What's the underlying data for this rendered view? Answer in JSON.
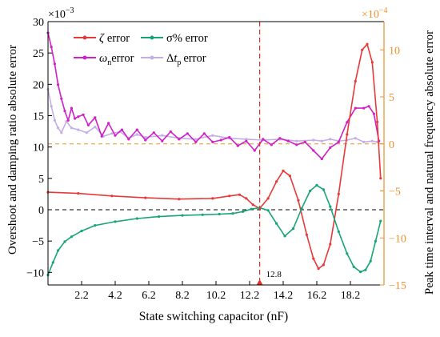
{
  "chart_data": {
    "type": "line",
    "xlabel": "State switching capacitor (nF)",
    "ylabel_left": "Overshoot and damping ratio absolute error",
    "ylabel_right": "Peak time interval and natural frequency absolute error",
    "left_multiplier": "×10",
    "left_exponent": "−3",
    "right_multiplier": "×10",
    "right_exponent": "−4",
    "xlim": [
      0.2,
      20.2
    ],
    "xticks": [
      2.2,
      4.2,
      6.2,
      8.2,
      10.2,
      12.2,
      14.2,
      16.2,
      18.2
    ],
    "xtick_labels": [
      "2.2",
      "4.2",
      "6.2",
      "8.2",
      "10.2",
      "12.2",
      "14.2",
      "16.2",
      "18.2"
    ],
    "ylim_left": [
      -12,
      30
    ],
    "yticks_left": [
      -10,
      -5,
      0,
      5,
      10,
      15,
      20,
      25,
      30
    ],
    "ylim_right": [
      -15,
      13
    ],
    "yticks_right": [
      -15,
      -10,
      -5,
      0,
      5,
      10
    ],
    "right_axis_color": "#f0902a",
    "vline": {
      "x": 12.8,
      "label": "12.8",
      "color": "#e0302a"
    },
    "hline_left_zero": {
      "y": 0,
      "color": "#000000"
    },
    "hline_right_zero": {
      "y": 0,
      "color": "#f0902a"
    },
    "series": [
      {
        "name": "ζ error",
        "axis": "left",
        "color": "#e8393a",
        "x": [
          0.2,
          2.0,
          4.0,
          6.0,
          8.0,
          10.0,
          11.0,
          11.6,
          12.0,
          12.4,
          12.8,
          13.3,
          13.8,
          14.2,
          14.6,
          15.1,
          15.6,
          16.0,
          16.3,
          16.6,
          17.0,
          17.5,
          18.0,
          18.5,
          18.9,
          19.2,
          19.5,
          19.8,
          20.0
        ],
        "y": [
          2.8,
          2.6,
          2.2,
          1.9,
          1.7,
          1.8,
          2.2,
          2.4,
          1.8,
          0.8,
          0.2,
          1.8,
          4.5,
          6.2,
          5.4,
          1.5,
          -4.0,
          -7.8,
          -9.4,
          -8.8,
          -5.5,
          2.5,
          12.0,
          20.5,
          25.5,
          26.4,
          23.5,
          14.0,
          5.0
        ]
      },
      {
        "name": "σ% error",
        "axis": "left",
        "color": "#17a673",
        "x": [
          0.2,
          0.5,
          0.8,
          1.2,
          1.6,
          2.2,
          3.0,
          4.2,
          5.5,
          6.8,
          8.2,
          9.4,
          10.4,
          11.2,
          11.8,
          12.3,
          12.8,
          13.3,
          13.8,
          14.3,
          14.8,
          15.3,
          15.8,
          16.2,
          16.6,
          17.0,
          17.5,
          18.0,
          18.4,
          18.8,
          19.1,
          19.4,
          19.7,
          20.0
        ],
        "y": [
          -10.4,
          -8.4,
          -6.5,
          -5.1,
          -4.3,
          -3.4,
          -2.5,
          -1.9,
          -1.4,
          -1.1,
          -0.9,
          -0.8,
          -0.7,
          -0.6,
          -0.3,
          0.1,
          0.3,
          -0.1,
          -2.2,
          -4.2,
          -3.0,
          0.2,
          3.0,
          3.9,
          3.2,
          0.5,
          -3.5,
          -7.0,
          -9.1,
          -9.9,
          -9.6,
          -8.2,
          -5.0,
          -1.8
        ]
      },
      {
        "name": "ω_n error",
        "axis": "right",
        "color": "#d020c8",
        "x": [
          0.2,
          0.4,
          0.6,
          0.8,
          1.0,
          1.2,
          1.4,
          1.6,
          1.8,
          2.0,
          2.3,
          2.6,
          3.0,
          3.4,
          3.8,
          4.2,
          4.6,
          5.0,
          5.5,
          6.0,
          6.5,
          7.0,
          7.5,
          8.0,
          8.5,
          9.0,
          9.5,
          10.0,
          10.5,
          11.0,
          11.5,
          12.0,
          12.5,
          13.0,
          13.5,
          14.0,
          14.5,
          15.0,
          15.5,
          16.0,
          16.5,
          17.0,
          17.5,
          18.0,
          18.5,
          19.0,
          19.3,
          19.6,
          19.9
        ],
        "y": [
          11.8,
          10.3,
          8.5,
          6.3,
          4.8,
          3.5,
          2.5,
          3.8,
          2.7,
          2.9,
          3.1,
          2.0,
          2.8,
          0.8,
          2.2,
          0.9,
          1.5,
          0.5,
          1.5,
          0.4,
          1.2,
          0.3,
          1.3,
          0.5,
          1.1,
          0.2,
          1.1,
          0.2,
          0.4,
          0.7,
          -0.2,
          0.3,
          -0.7,
          0.5,
          -0.1,
          0.6,
          0.3,
          -0.1,
          0.2,
          -0.7,
          -1.6,
          -0.4,
          0.2,
          2.3,
          3.8,
          3.8,
          4.0,
          3.2,
          0.3
        ]
      },
      {
        "name": "Δt_p error",
        "axis": "right",
        "color": "#c4aee8",
        "x": [
          0.2,
          0.4,
          0.6,
          0.8,
          1.0,
          1.3,
          1.6,
          2.0,
          2.5,
          3.0,
          3.5,
          4.0,
          4.5,
          5.0,
          5.5,
          6.0,
          7.0,
          8.0,
          9.0,
          10.0,
          11.0,
          12.0,
          13.0,
          14.0,
          15.0,
          16.0,
          16.5,
          17.0,
          17.5,
          18.0,
          18.5,
          19.0,
          19.5,
          19.8
        ],
        "y": [
          5.8,
          4.0,
          2.5,
          1.7,
          1.2,
          2.4,
          1.7,
          1.5,
          1.2,
          1.8,
          0.8,
          1.1,
          1.3,
          0.6,
          1.0,
          0.7,
          0.9,
          0.6,
          0.5,
          0.9,
          0.6,
          0.5,
          0.4,
          0.5,
          0.3,
          0.4,
          0.3,
          0.5,
          0.3,
          0.4,
          0.6,
          0.2,
          0.3,
          0.2
        ]
      }
    ]
  }
}
